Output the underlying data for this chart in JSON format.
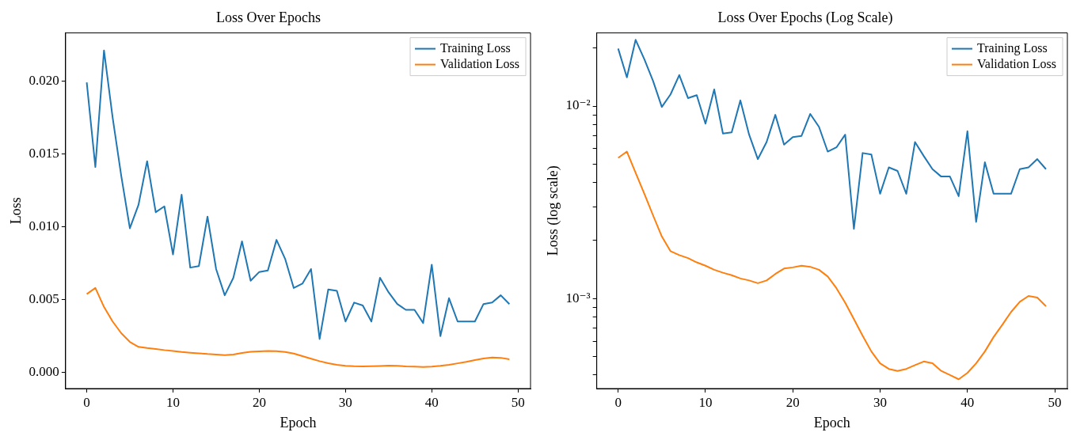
{
  "chart_data": [
    {
      "type": "line",
      "title": "Loss Over Epochs",
      "xlabel": "Epoch",
      "ylabel": "Loss",
      "x": [
        0,
        1,
        2,
        3,
        4,
        5,
        6,
        7,
        8,
        9,
        10,
        11,
        12,
        13,
        14,
        15,
        16,
        17,
        18,
        19,
        20,
        21,
        22,
        23,
        24,
        25,
        26,
        27,
        28,
        29,
        30,
        31,
        32,
        33,
        34,
        35,
        36,
        37,
        38,
        39,
        40,
        41,
        42,
        43,
        44,
        45,
        46,
        47,
        48,
        49
      ],
      "series": [
        {
          "name": "Training Loss",
          "color": "#1f77b4",
          "values": [
            0.0199,
            0.0141,
            0.0221,
            0.0175,
            0.0135,
            0.0099,
            0.0115,
            0.0145,
            0.011,
            0.0114,
            0.0081,
            0.0122,
            0.0072,
            0.0073,
            0.0107,
            0.0071,
            0.0053,
            0.0065,
            0.009,
            0.0063,
            0.0069,
            0.007,
            0.0091,
            0.0078,
            0.0058,
            0.0061,
            0.0071,
            0.0023,
            0.0057,
            0.0056,
            0.0035,
            0.0048,
            0.0046,
            0.0035,
            0.0065,
            0.0055,
            0.0047,
            0.0043,
            0.0043,
            0.0034,
            0.0074,
            0.0025,
            0.0051,
            0.0035,
            0.0035,
            0.0035,
            0.0047,
            0.0048,
            0.0053,
            0.0047
          ]
        },
        {
          "name": "Validation Loss",
          "color": "#ff7f0e",
          "values": [
            0.00538,
            0.0058,
            0.0045,
            0.0035,
            0.0027,
            0.0021,
            0.00176,
            0.00168,
            0.00162,
            0.00154,
            0.00148,
            0.00141,
            0.00136,
            0.00132,
            0.00127,
            0.00124,
            0.0012,
            0.00124,
            0.00134,
            0.00143,
            0.00145,
            0.00148,
            0.00146,
            0.00141,
            0.0013,
            0.00113,
            0.00095,
            0.00078,
            0.00064,
            0.00053,
            0.00046,
            0.00043,
            0.00042,
            0.00043,
            0.00045,
            0.00047,
            0.00046,
            0.00042,
            0.0004,
            0.00038,
            0.00041,
            0.00046,
            0.00053,
            0.00063,
            0.00073,
            0.00085,
            0.00096,
            0.00103,
            0.00101,
            0.00091
          ]
        }
      ],
      "xlim": [
        -2.45,
        51.45
      ],
      "xticks": [
        0,
        10,
        20,
        30,
        40,
        50
      ],
      "ylim": [
        -0.0011,
        0.0233
      ],
      "yticks": [
        {
          "value": 0,
          "label": "0.000"
        },
        0.005,
        {
          "value": 0.01,
          "label": "0.010"
        },
        0.015,
        {
          "value": 0.02,
          "label": "0.020"
        }
      ],
      "legend": "top right",
      "grid": false
    },
    {
      "type": "line",
      "title": "Loss Over Epochs (Log Scale)",
      "xlabel": "Epoch",
      "ylabel": "Loss (log scale)",
      "log": "y",
      "x": [
        0,
        1,
        2,
        3,
        4,
        5,
        6,
        7,
        8,
        9,
        10,
        11,
        12,
        13,
        14,
        15,
        16,
        17,
        18,
        19,
        20,
        21,
        22,
        23,
        24,
        25,
        26,
        27,
        28,
        29,
        30,
        31,
        32,
        33,
        34,
        35,
        36,
        37,
        38,
        39,
        40,
        41,
        42,
        43,
        44,
        45,
        46,
        47,
        48,
        49
      ],
      "series": [
        {
          "name": "Training Loss",
          "color": "#1f77b4",
          "values": [
            0.0199,
            0.0141,
            0.0221,
            0.0175,
            0.0135,
            0.0099,
            0.0115,
            0.0145,
            0.011,
            0.0114,
            0.0081,
            0.0122,
            0.0072,
            0.0073,
            0.0107,
            0.0071,
            0.0053,
            0.0065,
            0.009,
            0.0063,
            0.0069,
            0.007,
            0.0091,
            0.0078,
            0.0058,
            0.0061,
            0.0071,
            0.0023,
            0.0057,
            0.0056,
            0.0035,
            0.0048,
            0.0046,
            0.0035,
            0.0065,
            0.0055,
            0.0047,
            0.0043,
            0.0043,
            0.0034,
            0.0074,
            0.0025,
            0.0051,
            0.0035,
            0.0035,
            0.0035,
            0.0047,
            0.0048,
            0.0053,
            0.0047
          ]
        },
        {
          "name": "Validation Loss",
          "color": "#ff7f0e",
          "values": [
            0.00538,
            0.0058,
            0.0045,
            0.0035,
            0.0027,
            0.0021,
            0.00176,
            0.00168,
            0.00162,
            0.00154,
            0.00148,
            0.00141,
            0.00136,
            0.00132,
            0.00127,
            0.00124,
            0.0012,
            0.00124,
            0.00134,
            0.00143,
            0.00145,
            0.00148,
            0.00146,
            0.00141,
            0.0013,
            0.00113,
            0.00095,
            0.00078,
            0.00064,
            0.00053,
            0.00046,
            0.00043,
            0.00042,
            0.00043,
            0.00045,
            0.00047,
            0.00046,
            0.00042,
            0.0004,
            0.00038,
            0.00041,
            0.00046,
            0.00053,
            0.00063,
            0.00073,
            0.00085,
            0.00096,
            0.00103,
            0.00101,
            0.00091
          ]
        }
      ],
      "xlim": [
        -2.45,
        51.45
      ],
      "xticks": [
        0,
        10,
        20,
        30,
        40,
        50
      ],
      "ylim": [
        0.00034,
        0.024
      ],
      "yticks": [
        {
          "value": 0.0004,
          "label": null
        },
        {
          "value": 0.0005,
          "label": null
        },
        {
          "value": 0.0006,
          "label": null
        },
        {
          "value": 0.0007,
          "label": null
        },
        {
          "value": 0.0008,
          "label": null
        },
        {
          "value": 0.0009,
          "label": null
        },
        {
          "value": 0.001,
          "label": "10⁻³"
        },
        {
          "value": 0.002,
          "label": null
        },
        {
          "value": 0.003,
          "label": null
        },
        {
          "value": 0.004,
          "label": null
        },
        {
          "value": 0.005,
          "label": null
        },
        {
          "value": 0.006,
          "label": null
        },
        {
          "value": 0.007,
          "label": null
        },
        {
          "value": 0.008,
          "label": null
        },
        {
          "value": 0.009,
          "label": null
        },
        {
          "value": 0.01,
          "label": "10⁻²"
        },
        {
          "value": 0.02,
          "label": null
        }
      ],
      "legend": "top right",
      "grid": false
    }
  ]
}
